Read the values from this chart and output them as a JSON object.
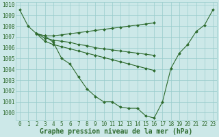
{
  "title": "Graphe pression niveau de la mer (hPa)",
  "x_values": [
    0,
    1,
    2,
    3,
    4,
    5,
    6,
    7,
    8,
    9,
    10,
    11,
    12,
    13,
    14,
    15,
    16,
    17,
    18,
    19,
    20,
    21,
    22,
    23
  ],
  "series": [
    {
      "y": [
        1009.5,
        1008.0,
        1007.3,
        1007.1,
        1006.5,
        1005.0,
        1004.5,
        1003.3,
        1002.2,
        1001.5,
        1001.0,
        1001.0,
        1000.5,
        1000.4,
        1000.4,
        999.7,
        999.5,
        1001.0,
        1004.1,
        1005.5,
        1006.3,
        1007.5,
        1008.1,
        1009.5
      ],
      "start": 0
    },
    {
      "y": [
        1007.3,
        1007.1,
        1007.1,
        1007.2,
        1007.3,
        1007.4,
        1007.5,
        1007.6,
        1007.7,
        1007.8,
        1007.9,
        1008.0,
        1008.1,
        1008.2,
        1008.3
      ],
      "start": 2
    },
    {
      "y": [
        1007.3,
        1006.9,
        1006.7,
        1006.6,
        1006.5,
        1006.3,
        1006.2,
        1006.0,
        1005.9,
        1005.8,
        1005.7,
        1005.6,
        1005.5,
        1005.4,
        1005.3
      ],
      "start": 2
    },
    {
      "y": [
        1007.3,
        1006.6,
        1006.3,
        1006.1,
        1005.9,
        1005.7,
        1005.5,
        1005.3,
        1005.1,
        1004.9,
        1004.7,
        1004.5,
        1004.3,
        1004.1,
        1003.9
      ],
      "start": 2
    }
  ],
  "line_color": "#2d6a2d",
  "marker": "D",
  "marker_size": 2.0,
  "bg_color": "#cce8e8",
  "grid_color": "#99cccc",
  "ylim": [
    999.3,
    1010.2
  ],
  "yticks": [
    1000,
    1001,
    1002,
    1003,
    1004,
    1005,
    1006,
    1007,
    1008,
    1009,
    1010
  ],
  "xticks": [
    0,
    1,
    2,
    3,
    4,
    5,
    6,
    7,
    8,
    9,
    10,
    11,
    12,
    13,
    14,
    15,
    16,
    17,
    18,
    19,
    20,
    21,
    22,
    23
  ],
  "tick_fontsize": 5.5,
  "title_fontsize": 7.0,
  "linewidth": 0.8
}
